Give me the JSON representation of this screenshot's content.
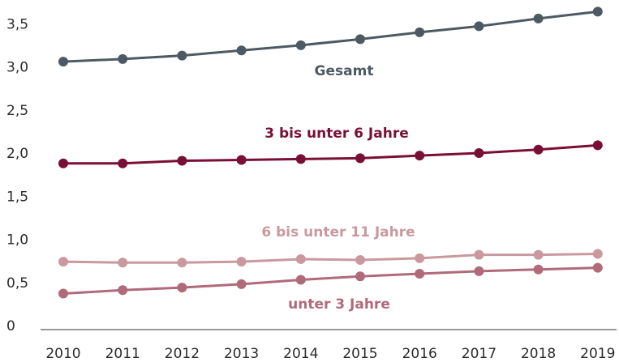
{
  "chart_data": {
    "type": "line",
    "categories": [
      "2010",
      "2011",
      "2012",
      "2013",
      "2014",
      "2015",
      "2016",
      "2017",
      "2018",
      "2019"
    ],
    "series": [
      {
        "name": "Gesamt",
        "color": "#4d5a63",
        "values": [
          3.07,
          3.1,
          3.14,
          3.2,
          3.26,
          3.33,
          3.41,
          3.48,
          3.57,
          3.65
        ]
      },
      {
        "name": "3 bis unter 6 Jahre",
        "color": "#7a0f35",
        "values": [
          1.89,
          1.89,
          1.92,
          1.93,
          1.94,
          1.95,
          1.98,
          2.01,
          2.05,
          2.1
        ]
      },
      {
        "name": "6 bis unter 11 Jahre",
        "color": "#c9999f",
        "values": [
          0.75,
          0.74,
          0.74,
          0.75,
          0.78,
          0.77,
          0.79,
          0.83,
          0.83,
          0.84
        ]
      },
      {
        "name": "unter 3 Jahre",
        "color": "#b06a7a",
        "values": [
          0.38,
          0.42,
          0.45,
          0.49,
          0.54,
          0.58,
          0.61,
          0.64,
          0.66,
          0.68
        ]
      }
    ],
    "ylim": [
      0,
      3.7
    ],
    "yticks": [
      0,
      {
        "value": 0.5,
        "label": "0,5"
      },
      {
        "value": 1.0,
        "label": "1,0"
      },
      {
        "value": 1.5,
        "label": "1,5"
      },
      {
        "value": 2.0,
        "label": "2,0"
      },
      {
        "value": 2.5,
        "label": "2,5"
      },
      {
        "value": 3.0,
        "label": "3,0"
      },
      {
        "value": 3.5,
        "label": "3,5"
      }
    ],
    "grid": false
  }
}
